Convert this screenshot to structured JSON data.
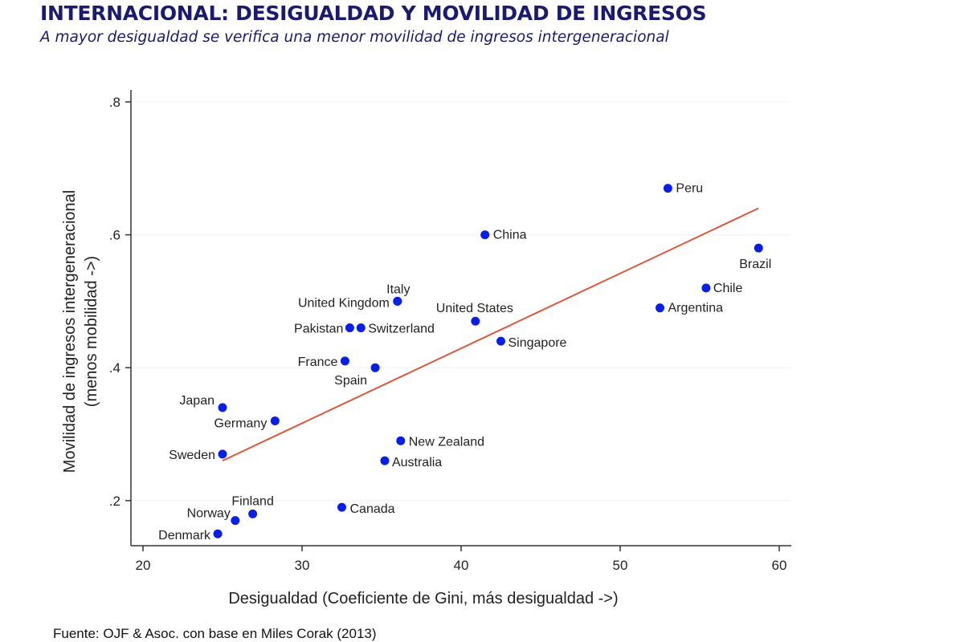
{
  "header": {
    "title": "INTERNACIONAL: DESIGUALDAD Y MOVILIDAD DE INGRESOS",
    "subtitle": "A mayor desigualdad se verifica una menor movilidad de ingresos intergeneracional"
  },
  "footer": {
    "source": "Fuente: OJF & Asoc. con base en Miles Corak (2013)"
  },
  "colors": {
    "point": "#0a1fe6",
    "fit_line": "#d9573a",
    "title": "#1a1a6e"
  },
  "chart_data": {
    "type": "scatter",
    "xlabel": "Desigualdad (Coeficiente de Gini, más desigualdad ->)",
    "ylabel": [
      "Movilidad de ingresos intergeneracional",
      "(menos mobilidad ->)"
    ],
    "xlim": [
      19,
      61
    ],
    "ylim": [
      0.13,
      0.83
    ],
    "xticks": [
      20,
      30,
      40,
      50,
      60
    ],
    "xtick_labels": [
      "20",
      "30",
      "40",
      "50",
      "60"
    ],
    "yticks": [
      0.2,
      0.4,
      0.6,
      0.8
    ],
    "ytick_labels": [
      ".2",
      ".4",
      ".6",
      ".8"
    ],
    "grid": true,
    "points": [
      {
        "label": "Peru",
        "x": 53.0,
        "y": 0.67
      },
      {
        "label": "China",
        "x": 41.5,
        "y": 0.6
      },
      {
        "label": "Brazil",
        "x": 58.7,
        "y": 0.58
      },
      {
        "label": "Chile",
        "x": 55.4,
        "y": 0.52
      },
      {
        "label": "Argentina",
        "x": 52.5,
        "y": 0.49
      },
      {
        "label": "Italy",
        "x": 36.0,
        "y": 0.5
      },
      {
        "label": "United Kingdom",
        "x": 36.0,
        "y": 0.5
      },
      {
        "label": "United States",
        "x": 40.9,
        "y": 0.47
      },
      {
        "label": "Pakistan",
        "x": 33.0,
        "y": 0.46
      },
      {
        "label": "Switzerland",
        "x": 33.7,
        "y": 0.46
      },
      {
        "label": "Singapore",
        "x": 42.5,
        "y": 0.44
      },
      {
        "label": "France",
        "x": 32.7,
        "y": 0.41
      },
      {
        "label": "Spain",
        "x": 34.6,
        "y": 0.4
      },
      {
        "label": "Japan",
        "x": 25.0,
        "y": 0.34
      },
      {
        "label": "Germany",
        "x": 28.3,
        "y": 0.32
      },
      {
        "label": "New Zealand",
        "x": 36.2,
        "y": 0.29
      },
      {
        "label": "Sweden",
        "x": 25.0,
        "y": 0.27
      },
      {
        "label": "Australia",
        "x": 35.2,
        "y": 0.26
      },
      {
        "label": "Canada",
        "x": 32.5,
        "y": 0.19
      },
      {
        "label": "Finland",
        "x": 26.9,
        "y": 0.18
      },
      {
        "label": "Norway",
        "x": 25.8,
        "y": 0.17
      },
      {
        "label": "Denmark",
        "x": 24.7,
        "y": 0.15
      }
    ],
    "fit_line": {
      "x": [
        25.0,
        58.7
      ],
      "y": [
        0.26,
        0.64
      ]
    }
  }
}
